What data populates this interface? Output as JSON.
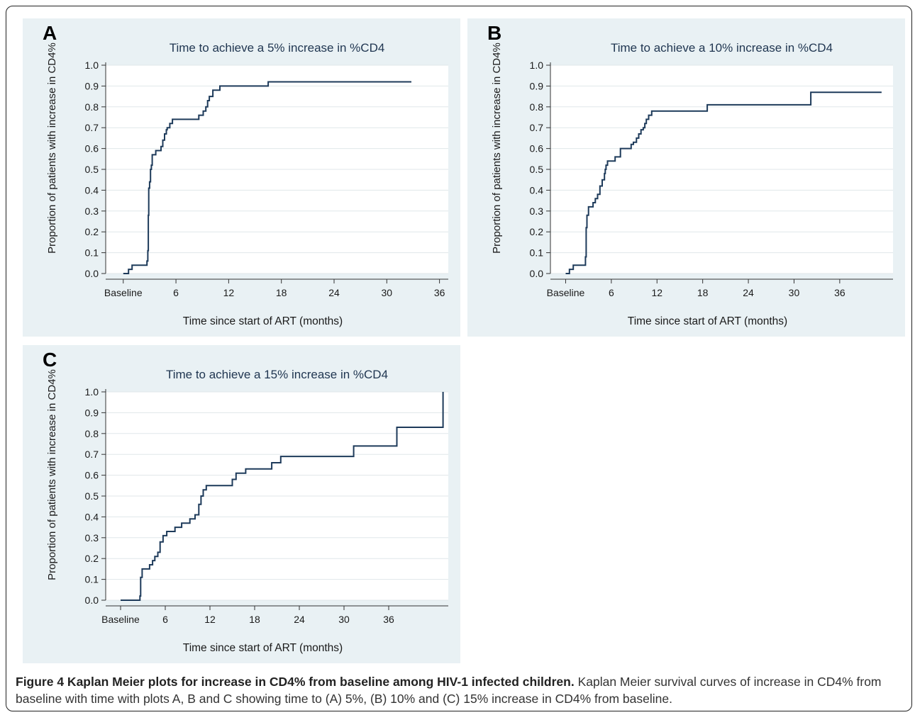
{
  "colors": {
    "panel_bg": "#e9f1f4",
    "plot_bg": "#ffffff",
    "grid": "#e0e7ea",
    "line": "#1d3a5a",
    "text": "#1a1a1a"
  },
  "caption": {
    "bold": "Figure 4 Kaplan Meier plots for increase in CD4% from baseline among HIV-1 infected children.",
    "text": " Kaplan Meier survival curves of increase in CD4% from baseline with time with plots A, B and C showing time to (A) 5%, (B) 10% and (C) 15% increase in CD4% from baseline."
  },
  "chart_data": [
    {
      "type": "line",
      "panel_label": "A",
      "title": "Time to achieve a 5% increase in %CD4",
      "xlabel": "Time since start of ART (months)",
      "ylabel": "Proportion of patients with increase in CD4%",
      "xlim": [
        -2,
        37
      ],
      "ylim": [
        0,
        1
      ],
      "x_ticks": [
        0,
        6,
        12,
        18,
        24,
        30,
        36
      ],
      "x_tick_labels": [
        "Baseline",
        "6",
        "12",
        "18",
        "24",
        "30",
        "36"
      ],
      "y_ticks": [
        0,
        0.1,
        0.2,
        0.3,
        0.4,
        0.5,
        0.6,
        0.7,
        0.8,
        0.9,
        1.0
      ],
      "y_tick_labels": [
        "0.0",
        "0.1",
        "0.2",
        "0.3",
        "0.4",
        "0.5",
        "0.6",
        "0.7",
        "0.8",
        "0.9",
        "1.0"
      ],
      "grid": true,
      "step": true,
      "series": [
        {
          "x": [
            0,
            0.6,
            1,
            2.4,
            2.7,
            2.8,
            2.85,
            2.9,
            3.0,
            3.1,
            3.2,
            3.3,
            3.5,
            3.7,
            4.3,
            4.5,
            4.7,
            4.9,
            5.0,
            5.3,
            5.6,
            5.8,
            8.6,
            9.1,
            9.4,
            9.6,
            9.8,
            10.2,
            11.0,
            16.5,
            32.8
          ],
          "y": [
            0,
            0.02,
            0.04,
            0.04,
            0.06,
            0.11,
            0.28,
            0.41,
            0.44,
            0.5,
            0.52,
            0.57,
            0.57,
            0.59,
            0.61,
            0.64,
            0.67,
            0.69,
            0.7,
            0.72,
            0.74,
            0.74,
            0.76,
            0.78,
            0.8,
            0.83,
            0.85,
            0.88,
            0.9,
            0.92,
            0.92
          ]
        }
      ]
    },
    {
      "type": "line",
      "panel_label": "B",
      "title": "Time to achieve a 10% increase in %CD4",
      "xlabel": "Time since start of ART (months)",
      "ylabel": "Proportion of patients with increase in CD4%",
      "xlim": [
        -2,
        43
      ],
      "ylim": [
        0,
        1
      ],
      "x_ticks": [
        0,
        6,
        12,
        18,
        24,
        30,
        36
      ],
      "x_tick_labels": [
        "Baseline",
        "6",
        "12",
        "18",
        "24",
        "30",
        "36"
      ],
      "y_ticks": [
        0,
        0.1,
        0.2,
        0.3,
        0.4,
        0.5,
        0.6,
        0.7,
        0.8,
        0.9,
        1.0
      ],
      "y_tick_labels": [
        "0.0",
        "0.1",
        "0.2",
        "0.3",
        "0.4",
        "0.5",
        "0.6",
        "0.7",
        "0.8",
        "0.9",
        "1.0"
      ],
      "grid": true,
      "step": true,
      "series": [
        {
          "x": [
            0,
            0.5,
            1.0,
            2.4,
            2.6,
            2.7,
            2.8,
            3.0,
            3.2,
            3.6,
            3.9,
            4.2,
            4.5,
            4.8,
            5.1,
            5.2,
            5.3,
            5.5,
            6.0,
            6.5,
            7.2,
            8.2,
            8.6,
            8.9,
            9.3,
            9.6,
            9.9,
            10.2,
            10.4,
            10.6,
            10.9,
            11.3,
            18.6,
            32.2,
            41.5
          ],
          "y": [
            0,
            0.02,
            0.04,
            0.04,
            0.08,
            0.22,
            0.28,
            0.32,
            0.32,
            0.34,
            0.36,
            0.38,
            0.42,
            0.45,
            0.48,
            0.5,
            0.52,
            0.54,
            0.54,
            0.56,
            0.6,
            0.6,
            0.62,
            0.63,
            0.65,
            0.67,
            0.69,
            0.7,
            0.72,
            0.74,
            0.76,
            0.78,
            0.81,
            0.87,
            0.87
          ]
        }
      ]
    },
    {
      "type": "line",
      "panel_label": "C",
      "title": "Time to achieve a 15% increase in %CD4",
      "xlabel": "Time since start of ART (months)",
      "ylabel": "Proportion of patients with increase in CD4%",
      "xlim": [
        -2,
        44
      ],
      "ylim": [
        0,
        1
      ],
      "x_ticks": [
        0,
        6,
        12,
        18,
        24,
        30,
        36
      ],
      "x_tick_labels": [
        "Baseline",
        "6",
        "12",
        "18",
        "24",
        "30",
        "36"
      ],
      "y_ticks": [
        0,
        0.1,
        0.2,
        0.3,
        0.4,
        0.5,
        0.6,
        0.7,
        0.8,
        0.9,
        1.0
      ],
      "y_tick_labels": [
        "0.0",
        "0.1",
        "0.2",
        "0.3",
        "0.4",
        "0.5",
        "0.6",
        "0.7",
        "0.8",
        "0.9",
        "1.0"
      ],
      "grid": true,
      "step": true,
      "series": [
        {
          "x": [
            0,
            2.6,
            2.7,
            2.9,
            3.9,
            4.3,
            4.6,
            5.0,
            5.3,
            5.7,
            6.2,
            7.3,
            8.2,
            9.3,
            10.0,
            10.5,
            10.8,
            11.1,
            11.5,
            15.0,
            15.5,
            16.8,
            20.3,
            21.5,
            31.3,
            37.1,
            43.3,
            43.3
          ],
          "y": [
            0,
            0.02,
            0.11,
            0.15,
            0.17,
            0.19,
            0.21,
            0.23,
            0.28,
            0.31,
            0.33,
            0.35,
            0.37,
            0.39,
            0.41,
            0.46,
            0.5,
            0.53,
            0.55,
            0.58,
            0.61,
            0.63,
            0.66,
            0.69,
            0.74,
            0.83,
            0.83,
            1.0
          ]
        }
      ]
    }
  ]
}
